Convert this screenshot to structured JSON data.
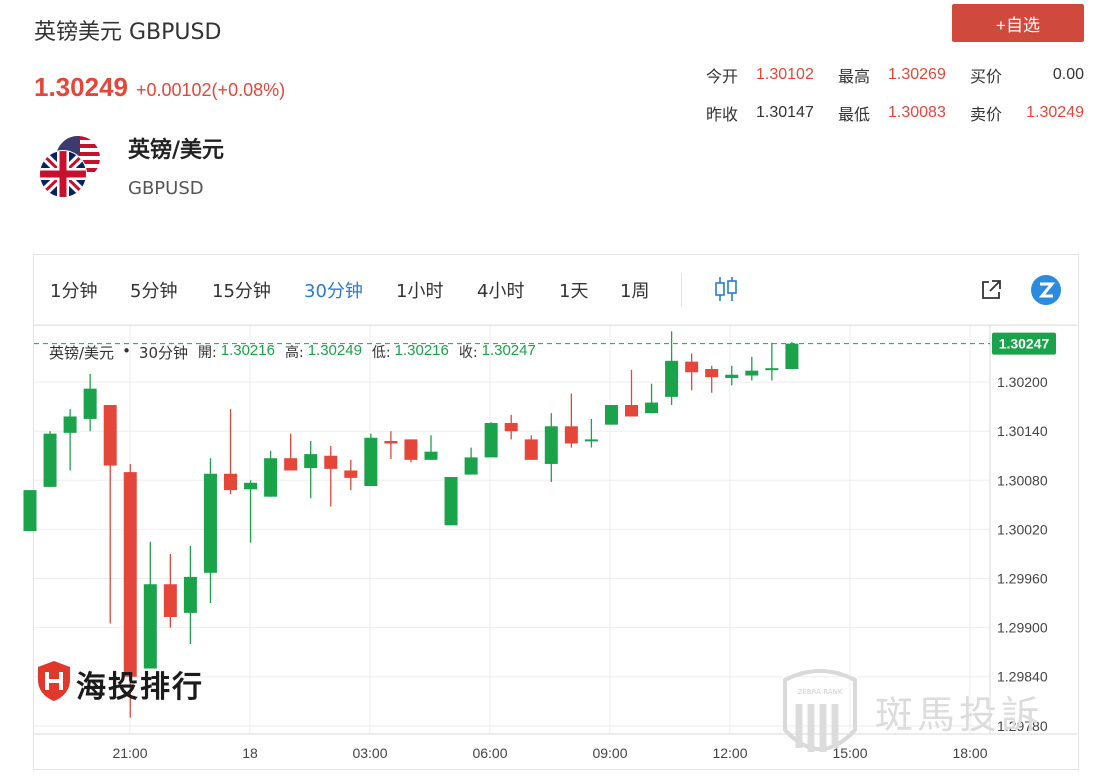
{
  "header": {
    "title": "英镑美元 GBPUSD",
    "last_price": "1.30249",
    "change": "+0.00102(+0.08%)",
    "add_button": "+自选"
  },
  "quote": {
    "open_label": "今开",
    "open": "1.30102",
    "high_label": "最高",
    "high": "1.30269",
    "bid_label": "买价",
    "bid": "0.00",
    "prev_label": "昨收",
    "prev": "1.30147",
    "low_label": "最低",
    "low": "1.30083",
    "ask_label": "卖价",
    "ask": "1.30249"
  },
  "instrument": {
    "name": "英镑/美元",
    "code": "GBPUSD"
  },
  "toolbar": {
    "timeframes": [
      "1分钟",
      "5分钟",
      "15分钟",
      "30分钟",
      "1小时",
      "4小时",
      "1天",
      "1周"
    ],
    "active": "30分钟"
  },
  "legend": {
    "name": "英镑/美元",
    "interval": "30分钟",
    "open_label": "開:",
    "open": "1.30216",
    "high_label": "高:",
    "high": "1.30249",
    "low_label": "低:",
    "low": "1.30216",
    "close_label": "收:",
    "close": "1.30247"
  },
  "watermarks": {
    "left": "海投排行",
    "right": "斑馬投訴",
    "right_badge": "ZEBRA RANK"
  },
  "colors": {
    "up": "#1aa34a",
    "down": "#e5463a",
    "accent": "#2b7bd1"
  },
  "chart_data": {
    "type": "candlestick",
    "y_ticks": [
      "1.30200",
      "1.30140",
      "1.30080",
      "1.30020",
      "1.29960",
      "1.29900",
      "1.29840",
      "1.29780"
    ],
    "x_ticks": [
      "21:00",
      "18",
      "03:00",
      "06:00",
      "09:00",
      "12:00",
      "15:00",
      "18:00"
    ],
    "ylim": [
      1.2977,
      1.3026
    ],
    "last_label": "1.30247",
    "grid": true,
    "candles": [
      {
        "o": 1.30018,
        "h": 1.30068,
        "l": 1.30018,
        "c": 1.30068
      },
      {
        "o": 1.30072,
        "h": 1.3014,
        "l": 1.30072,
        "c": 1.30137
      },
      {
        "o": 1.30138,
        "h": 1.30167,
        "l": 1.30092,
        "c": 1.30158
      },
      {
        "o": 1.30155,
        "h": 1.3021,
        "l": 1.3014,
        "c": 1.30192
      },
      {
        "o": 1.30172,
        "h": 1.30172,
        "l": 1.29905,
        "c": 1.30098
      },
      {
        "o": 1.3009,
        "h": 1.301,
        "l": 1.2979,
        "c": 1.2984
      },
      {
        "o": 1.2985,
        "h": 1.30005,
        "l": 1.2985,
        "c": 1.29953
      },
      {
        "o": 1.29953,
        "h": 1.2999,
        "l": 1.299,
        "c": 1.29913
      },
      {
        "o": 1.29918,
        "h": 1.3,
        "l": 1.2988,
        "c": 1.29962
      },
      {
        "o": 1.29967,
        "h": 1.30107,
        "l": 1.2993,
        "c": 1.30088
      },
      {
        "o": 1.30088,
        "h": 1.30167,
        "l": 1.30063,
        "c": 1.30068
      },
      {
        "o": 1.30069,
        "h": 1.3008,
        "l": 1.30004,
        "c": 1.30077
      },
      {
        "o": 1.3006,
        "h": 1.30116,
        "l": 1.3006,
        "c": 1.30107
      },
      {
        "o": 1.30107,
        "h": 1.30137,
        "l": 1.30092,
        "c": 1.30092
      },
      {
        "o": 1.30095,
        "h": 1.30128,
        "l": 1.30058,
        "c": 1.30112
      },
      {
        "o": 1.3011,
        "h": 1.30122,
        "l": 1.30048,
        "c": 1.30094
      },
      {
        "o": 1.30092,
        "h": 1.30105,
        "l": 1.30068,
        "c": 1.30083
      },
      {
        "o": 1.30073,
        "h": 1.30137,
        "l": 1.30073,
        "c": 1.30132
      },
      {
        "o": 1.30128,
        "h": 1.3014,
        "l": 1.30106,
        "c": 1.30125
      },
      {
        "o": 1.3013,
        "h": 1.3013,
        "l": 1.30102,
        "c": 1.30105
      },
      {
        "o": 1.30105,
        "h": 1.30135,
        "l": 1.30105,
        "c": 1.30115
      },
      {
        "o": 1.30025,
        "h": 1.30084,
        "l": 1.30025,
        "c": 1.30084
      },
      {
        "o": 1.30087,
        "h": 1.3012,
        "l": 1.30087,
        "c": 1.30108
      },
      {
        "o": 1.30108,
        "h": 1.30151,
        "l": 1.30108,
        "c": 1.3015
      },
      {
        "o": 1.3015,
        "h": 1.3016,
        "l": 1.3013,
        "c": 1.3014
      },
      {
        "o": 1.3013,
        "h": 1.30135,
        "l": 1.30105,
        "c": 1.30105
      },
      {
        "o": 1.301,
        "h": 1.30162,
        "l": 1.30078,
        "c": 1.30146
      },
      {
        "o": 1.30146,
        "h": 1.30186,
        "l": 1.3012,
        "c": 1.30125
      },
      {
        "o": 1.3013,
        "h": 1.30155,
        "l": 1.3012,
        "c": 1.3013
      },
      {
        "o": 1.30148,
        "h": 1.30172,
        "l": 1.30148,
        "c": 1.30172
      },
      {
        "o": 1.30172,
        "h": 1.30215,
        "l": 1.3016,
        "c": 1.30158
      },
      {
        "o": 1.30162,
        "h": 1.30198,
        "l": 1.30162,
        "c": 1.30175
      },
      {
        "o": 1.30182,
        "h": 1.30262,
        "l": 1.30172,
        "c": 1.30226
      },
      {
        "o": 1.30225,
        "h": 1.30235,
        "l": 1.3019,
        "c": 1.30212
      },
      {
        "o": 1.30216,
        "h": 1.3022,
        "l": 1.30187,
        "c": 1.30206
      },
      {
        "o": 1.30205,
        "h": 1.3022,
        "l": 1.30196,
        "c": 1.30209
      },
      {
        "o": 1.30208,
        "h": 1.30231,
        "l": 1.30202,
        "c": 1.30214
      },
      {
        "o": 1.30215,
        "h": 1.30248,
        "l": 1.30202,
        "c": 1.30217
      },
      {
        "o": 1.30216,
        "h": 1.30249,
        "l": 1.30216,
        "c": 1.30247
      }
    ]
  }
}
